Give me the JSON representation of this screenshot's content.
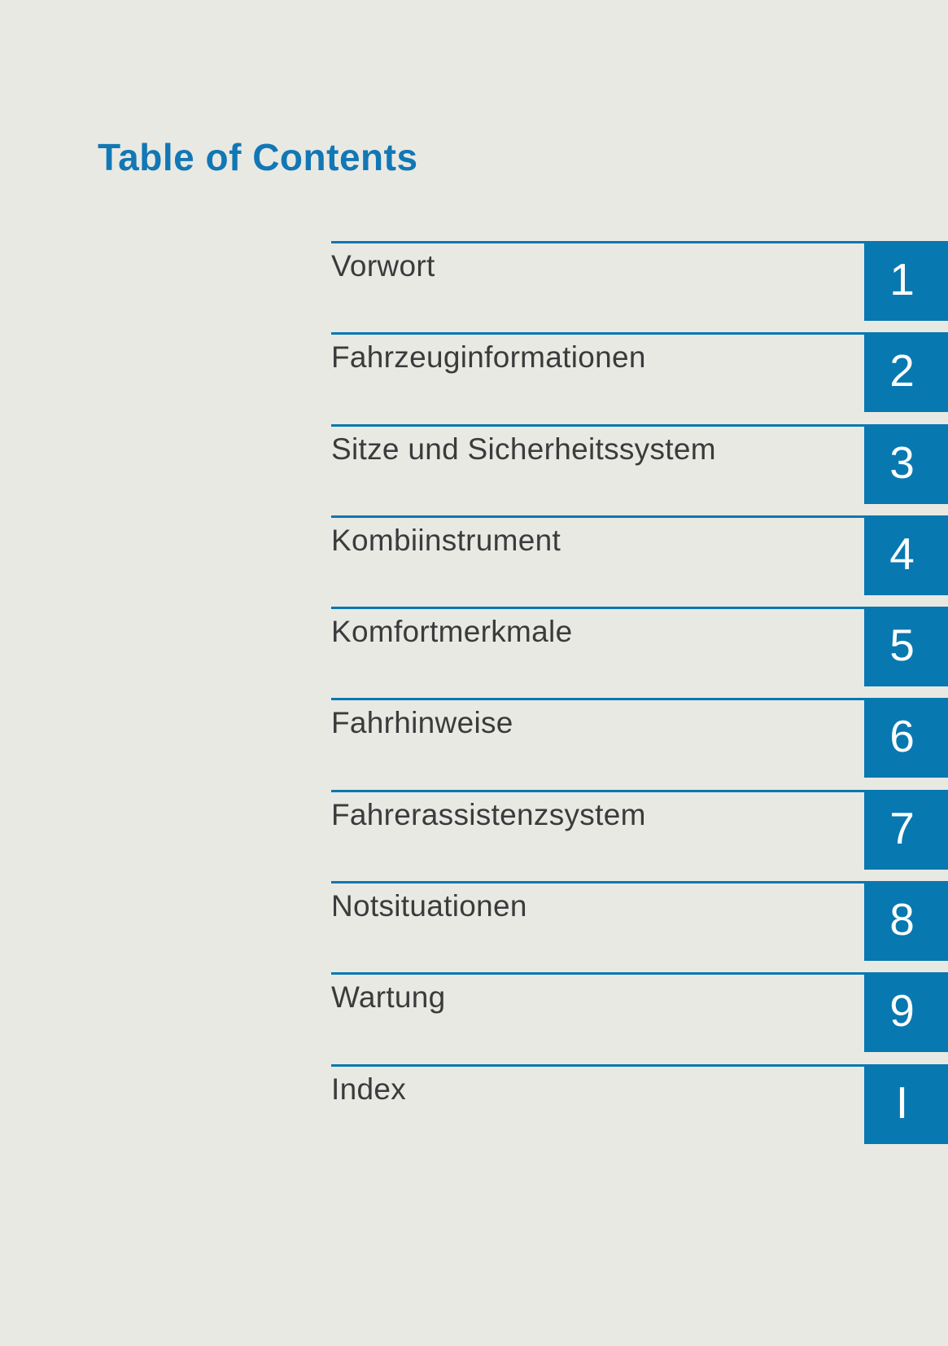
{
  "page": {
    "title": "Table of Contents",
    "background_color": "#e9e9e3",
    "accent_blue": "#0878b0",
    "title_blue": "#1277b5",
    "label_color": "#3b3b3d",
    "number_color": "#ffffff"
  },
  "toc": {
    "items": [
      {
        "label": "Vorwort",
        "number": "1"
      },
      {
        "label": "Fahrzeuginformationen",
        "number": "2"
      },
      {
        "label": "Sitze und Sicherheitssystem",
        "number": "3"
      },
      {
        "label": "Kombiinstrument",
        "number": "4"
      },
      {
        "label": "Komfortmerkmale",
        "number": "5"
      },
      {
        "label": "Fahrhinweise",
        "number": "6"
      },
      {
        "label": "Fahrerassistenzsystem",
        "number": "7"
      },
      {
        "label": "Notsituationen",
        "number": "8"
      },
      {
        "label": "Wartung",
        "number": "9"
      },
      {
        "label": "Index",
        "number": "I"
      }
    ]
  }
}
